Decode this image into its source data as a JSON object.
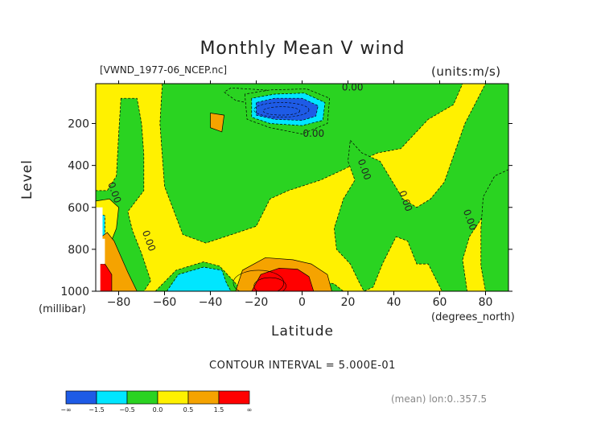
{
  "chart_data": {
    "type": "heatmap",
    "title": "Monthly Mean V wind",
    "file_label": "[VWND_1977-06_NCEP.nc]",
    "units_label": "(units:m/s)",
    "ylabel": "Level",
    "yunits": "(millibar)",
    "xlabel": "Latitude",
    "xunits": "(degrees_north)",
    "x_ticks": [
      -80,
      -60,
      -40,
      -20,
      0,
      20,
      40,
      60,
      80
    ],
    "y_ticks": [
      200,
      400,
      600,
      800,
      1000
    ],
    "xlim": [
      -90,
      90
    ],
    "ylim": [
      1000,
      10
    ],
    "y_scale": "linear, inverted",
    "contour_interval_text": "CONTOUR INTERVAL = 5.000E-01",
    "contour_labels": [
      {
        "text": "0.00",
        "lat": 22,
        "lev": 30
      },
      {
        "text": "0.00",
        "lat": 5,
        "lev": 250
      },
      {
        "text": "0.00",
        "lat": 27,
        "lev": 420
      },
      {
        "text": "0.00",
        "lat": -82,
        "lev": 530
      },
      {
        "text": "0.00",
        "lat": -67,
        "lev": 760
      },
      {
        "text": "0.00",
        "lat": 45,
        "lev": 570
      },
      {
        "text": "0.00",
        "lat": 73,
        "lev": 660
      }
    ],
    "levels": [
      {
        "name": "< -1.5",
        "range": [
          null,
          -1.5
        ],
        "color": "#1e5be6"
      },
      {
        "name": "-1.5 to -0.5",
        "range": [
          -1.5,
          -0.5
        ],
        "color": "#00e6ff"
      },
      {
        "name": "-0.5 to 0.0",
        "range": [
          -0.5,
          0.0
        ],
        "color": "#2ad321"
      },
      {
        "name": "0.0 to 0.5",
        "range": [
          0.0,
          0.5
        ],
        "color": "#fff100"
      },
      {
        "name": "0.5 to 1.5",
        "range": [
          0.5,
          1.5
        ],
        "color": "#f5a300"
      },
      {
        "name": "> 1.5",
        "range": [
          1.5,
          null
        ],
        "color": "#ff0000"
      }
    ],
    "colorbar_labels": [
      "-∞",
      "-1.5",
      "-0.5",
      "0.0",
      "0.5",
      "1.5",
      "∞"
    ],
    "footer": "(mean) lon:0..357.5",
    "regions": [
      {
        "level": "-0.5 to 0.0",
        "points": [
          [
            -61,
            10
          ],
          [
            -62,
            200
          ],
          [
            -60,
            500
          ],
          [
            -52,
            730
          ],
          [
            -42,
            770
          ],
          [
            -28,
            720
          ],
          [
            -20,
            690
          ],
          [
            -14,
            560
          ],
          [
            -6,
            520
          ],
          [
            8,
            470
          ],
          [
            18,
            420
          ],
          [
            25,
            380
          ],
          [
            33,
            340
          ],
          [
            43,
            320
          ],
          [
            55,
            180
          ],
          [
            66,
            110
          ],
          [
            70,
            10
          ]
        ]
      },
      {
        "level": "-0.5 to 0.0",
        "points": [
          [
            -79,
            80
          ],
          [
            -80,
            250
          ],
          [
            -81,
            450
          ],
          [
            -85,
            520
          ],
          [
            -90,
            520
          ],
          [
            -90,
            1000
          ],
          [
            -69,
            1000
          ],
          [
            -66,
            950
          ],
          [
            -70,
            820
          ],
          [
            -74,
            710
          ],
          [
            -76,
            620
          ],
          [
            -69,
            520
          ],
          [
            -69,
            350
          ],
          [
            -70,
            200
          ],
          [
            -72,
            80
          ]
        ]
      },
      {
        "level": "-0.5 to 0.0",
        "points": [
          [
            -64,
            1000
          ],
          [
            -55,
            900
          ],
          [
            -43,
            860
          ],
          [
            -36,
            880
          ],
          [
            -30,
            950
          ],
          [
            -26,
            1000
          ]
        ]
      },
      {
        "level": "-0.5 to 0.0",
        "points": [
          [
            21,
            280
          ],
          [
            26,
            340
          ],
          [
            34,
            380
          ],
          [
            44,
            560
          ],
          [
            50,
            600
          ],
          [
            56,
            560
          ],
          [
            62,
            480
          ],
          [
            71,
            200
          ],
          [
            80,
            10
          ],
          [
            90,
            10
          ],
          [
            90,
            600
          ],
          [
            84,
            630
          ],
          [
            79,
            640
          ],
          [
            73,
            740
          ],
          [
            70,
            850
          ],
          [
            72,
            1000
          ],
          [
            61,
            1000
          ],
          [
            55,
            870
          ],
          [
            50,
            870
          ],
          [
            46,
            760
          ],
          [
            41,
            740
          ],
          [
            35,
            870
          ],
          [
            31,
            980
          ],
          [
            27,
            1000
          ],
          [
            25,
            960
          ],
          [
            21,
            870
          ],
          [
            15,
            800
          ],
          [
            14,
            700
          ],
          [
            18,
            560
          ],
          [
            23,
            470
          ],
          [
            20,
            380
          ]
        ]
      },
      {
        "level": "-0.5 to 0.0",
        "points": [
          [
            78,
            700
          ],
          [
            79,
            550
          ],
          [
            84,
            450
          ],
          [
            88,
            430
          ],
          [
            90,
            420
          ],
          [
            90,
            1000
          ],
          [
            80,
            1000
          ],
          [
            78,
            880
          ]
        ]
      },
      {
        "level": "-0.5 to 0.0",
        "points": [
          [
            9,
            1000
          ],
          [
            10,
            955
          ],
          [
            14,
            965
          ],
          [
            18,
            1000
          ]
        ]
      },
      {
        "level": "0.0 to 0.5",
        "points": [
          [
            -81,
            700
          ],
          [
            -80,
            600
          ],
          [
            -84,
            560
          ],
          [
            -90,
            570
          ],
          [
            -90,
            800
          ],
          [
            -85,
            810
          ]
        ]
      },
      {
        "level": "-0.5 to 0.0",
        "points": [
          [
            -31,
            30
          ],
          [
            -34,
            50
          ],
          [
            -29,
            90
          ],
          [
            -20,
            110
          ],
          [
            -12,
            120
          ],
          [
            -4,
            125
          ],
          [
            8,
            110
          ],
          [
            2,
            60
          ],
          [
            -10,
            45
          ]
        ]
      },
      {
        "level": "-0.5 to 0.0",
        "points": [
          [
            -25,
            60
          ],
          [
            -24,
            180
          ],
          [
            -14,
            220
          ],
          [
            0,
            250
          ],
          [
            11,
            200
          ],
          [
            12,
            80
          ],
          [
            2,
            35
          ],
          [
            -14,
            40
          ]
        ]
      },
      {
        "level": "-1.5 to -0.5",
        "points": [
          [
            -22,
            80
          ],
          [
            -22,
            170
          ],
          [
            -14,
            200
          ],
          [
            0,
            210
          ],
          [
            9,
            185
          ],
          [
            10,
            100
          ],
          [
            1,
            55
          ],
          [
            -12,
            60
          ]
        ]
      },
      {
        "level": "< -1.5",
        "points": [
          [
            -20,
            100
          ],
          [
            -20,
            160
          ],
          [
            -12,
            180
          ],
          [
            0,
            185
          ],
          [
            6,
            165
          ],
          [
            7,
            115
          ],
          [
            0,
            80
          ],
          [
            -12,
            80
          ]
        ]
      },
      {
        "level": "-1.5 to -0.5",
        "points": [
          [
            -59,
            1000
          ],
          [
            -54,
            920
          ],
          [
            -43,
            885
          ],
          [
            -35,
            900
          ],
          [
            -33,
            960
          ],
          [
            -31,
            1000
          ]
        ]
      },
      {
        "level": "-1.5 to -0.5",
        "points": [
          [
            -90,
            620
          ],
          [
            -86,
            640
          ],
          [
            -86,
            760
          ],
          [
            -90,
            770
          ]
        ]
      },
      {
        "level": "0.5 to 1.5",
        "points": [
          [
            -29,
            1000
          ],
          [
            -26,
            900
          ],
          [
            -16,
            840
          ],
          [
            -4,
            850
          ],
          [
            4,
            870
          ],
          [
            11,
            920
          ],
          [
            13,
            1000
          ]
        ]
      },
      {
        "level": "> 1.5",
        "points": [
          [
            -22,
            1000
          ],
          [
            -18,
            920
          ],
          [
            -10,
            890
          ],
          [
            -2,
            895
          ],
          [
            3,
            930
          ],
          [
            5,
            1000
          ]
        ]
      },
      {
        "level": "0.5 to 1.5",
        "points": [
          [
            -90,
            760
          ],
          [
            -85,
            720
          ],
          [
            -82,
            760
          ],
          [
            -76,
            910
          ],
          [
            -72,
            1000
          ],
          [
            -90,
            1000
          ]
        ]
      },
      {
        "level": "> 1.5",
        "points": [
          [
            -90,
            870
          ],
          [
            -86,
            870
          ],
          [
            -83,
            920
          ],
          [
            -83,
            1000
          ],
          [
            -90,
            1000
          ]
        ]
      },
      {
        "level": "0.5 to 1.5",
        "points": [
          [
            -40,
            150
          ],
          [
            -40,
            220
          ],
          [
            -35,
            240
          ],
          [
            -34,
            160
          ]
        ]
      }
    ],
    "white_regions": [
      {
        "points": [
          [
            -90,
            600
          ],
          [
            -87,
            600
          ],
          [
            -87,
            750
          ],
          [
            -86,
            750
          ],
          [
            -86,
            870
          ],
          [
            -88,
            870
          ],
          [
            -88,
            1000
          ],
          [
            -90,
            1000
          ]
        ]
      }
    ]
  }
}
